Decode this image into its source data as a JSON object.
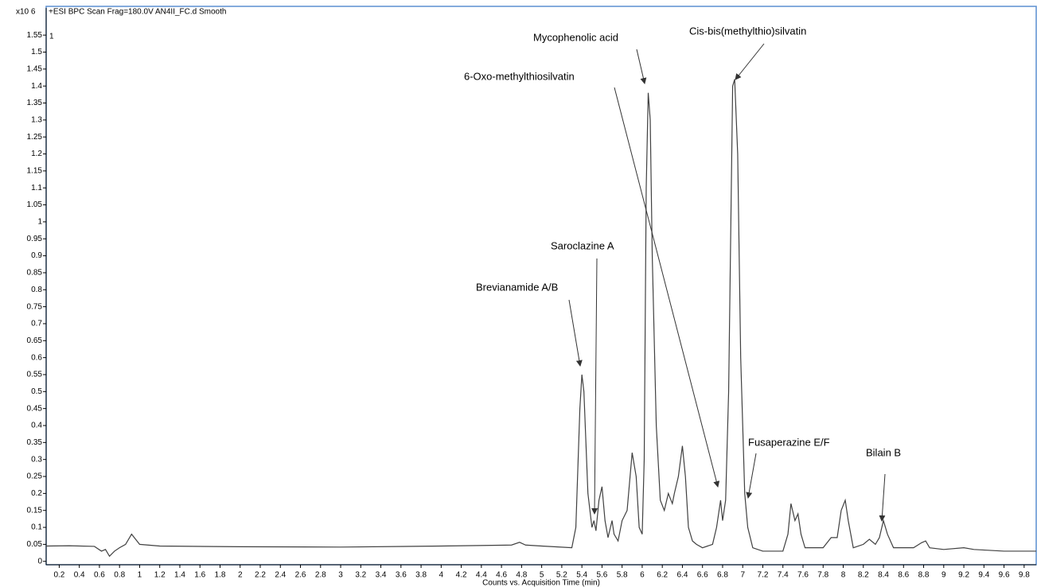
{
  "chart_data": {
    "type": "line",
    "title": "+ESI BPC Scan Frag=180.0V AN4II_FC.d  Smooth",
    "y_multiplier": "x10 6",
    "panel_label": "1",
    "xlabel": "Counts vs. Acquisition Time (min)",
    "color": "#404040",
    "xlim": [
      0.07,
      9.92
    ],
    "ylim": [
      -0.01,
      1.63
    ],
    "xticks": [
      0.2,
      0.4,
      0.6,
      0.8,
      1,
      1.2,
      1.4,
      1.6,
      1.8,
      2,
      2.2,
      2.4,
      2.6,
      2.8,
      3,
      3.2,
      3.4,
      3.6,
      3.8,
      4,
      4.2,
      4.4,
      4.6,
      4.8,
      5,
      5.2,
      5.4,
      5.6,
      5.8,
      6,
      6.2,
      6.4,
      6.6,
      6.8,
      7,
      7.2,
      7.4,
      7.6,
      7.8,
      8,
      8.2,
      8.4,
      8.6,
      8.8,
      9,
      9.2,
      9.4,
      9.6,
      9.8
    ],
    "yticks": [
      0,
      0.05,
      0.1,
      0.15,
      0.2,
      0.25,
      0.3,
      0.35,
      0.4,
      0.45,
      0.5,
      0.55,
      0.6,
      0.65,
      0.7,
      0.75,
      0.8,
      0.85,
      0.9,
      0.95,
      1,
      1.05,
      1.1,
      1.15,
      1.2,
      1.25,
      1.3,
      1.35,
      1.4,
      1.45,
      1.5,
      1.55
    ],
    "x": [
      0.07,
      0.3,
      0.55,
      0.62,
      0.66,
      0.7,
      0.75,
      0.8,
      0.86,
      0.92,
      0.96,
      1.0,
      1.2,
      2.0,
      3.0,
      4.0,
      4.7,
      4.78,
      4.84,
      5.0,
      5.3,
      5.34,
      5.38,
      5.4,
      5.42,
      5.46,
      5.5,
      5.52,
      5.54,
      5.57,
      5.6,
      5.63,
      5.66,
      5.7,
      5.72,
      5.76,
      5.8,
      5.85,
      5.9,
      5.94,
      5.97,
      6.0,
      6.02,
      6.04,
      6.06,
      6.08,
      6.1,
      6.14,
      6.18,
      6.22,
      6.26,
      6.3,
      6.32,
      6.36,
      6.4,
      6.43,
      6.46,
      6.5,
      6.54,
      6.6,
      6.7,
      6.74,
      6.78,
      6.8,
      6.83,
      6.86,
      6.9,
      6.92,
      6.95,
      6.98,
      7.02,
      7.05,
      7.1,
      7.2,
      7.4,
      7.45,
      7.48,
      7.52,
      7.55,
      7.58,
      7.62,
      7.8,
      7.88,
      7.94,
      7.98,
      8.02,
      8.05,
      8.1,
      8.2,
      8.26,
      8.32,
      8.36,
      8.4,
      8.44,
      8.5,
      8.7,
      8.78,
      8.82,
      8.86,
      9.0,
      9.2,
      9.3,
      9.6,
      9.92
    ],
    "values": [
      0.045,
      0.046,
      0.044,
      0.03,
      0.035,
      0.015,
      0.03,
      0.04,
      0.05,
      0.08,
      0.065,
      0.05,
      0.045,
      0.043,
      0.042,
      0.045,
      0.048,
      0.056,
      0.048,
      0.045,
      0.04,
      0.1,
      0.45,
      0.55,
      0.5,
      0.2,
      0.1,
      0.12,
      0.09,
      0.18,
      0.22,
      0.12,
      0.07,
      0.12,
      0.08,
      0.06,
      0.12,
      0.15,
      0.32,
      0.25,
      0.1,
      0.08,
      0.3,
      1.1,
      1.38,
      1.3,
      0.9,
      0.4,
      0.18,
      0.15,
      0.2,
      0.17,
      0.2,
      0.25,
      0.34,
      0.25,
      0.1,
      0.06,
      0.05,
      0.04,
      0.05,
      0.1,
      0.18,
      0.12,
      0.18,
      0.5,
      1.4,
      1.42,
      1.2,
      0.6,
      0.2,
      0.1,
      0.04,
      0.03,
      0.03,
      0.08,
      0.17,
      0.12,
      0.14,
      0.08,
      0.04,
      0.04,
      0.07,
      0.07,
      0.15,
      0.18,
      0.12,
      0.04,
      0.05,
      0.065,
      0.05,
      0.07,
      0.12,
      0.08,
      0.04,
      0.04,
      0.055,
      0.06,
      0.04,
      0.035,
      0.04,
      0.035,
      0.03,
      0.03
    ],
    "annotations": [
      "Mycophenolic acid",
      "Cis-bis(methylthio)silvatin",
      "6-Oxo-methylthiosilvatin",
      "Saroclazine A",
      "Brevianamide A/B",
      "Fusaperazine E/F",
      "Bilain B"
    ]
  }
}
